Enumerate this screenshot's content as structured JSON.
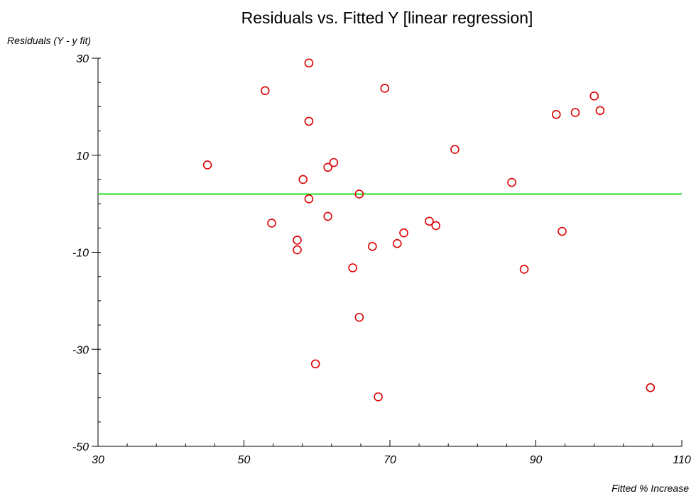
{
  "chart_data": {
    "type": "scatter",
    "title": "Residuals vs. Fitted Y [linear regression]",
    "xlabel": "Fitted % Increase",
    "ylabel": "Residuals (Y - y fit)",
    "xlim": [
      30,
      110
    ],
    "ylim": [
      -50,
      30
    ],
    "xticks": [
      30,
      50,
      70,
      90,
      110
    ],
    "yticks": [
      30,
      10,
      -10,
      -30,
      -50
    ],
    "xtick_labels": [
      "30",
      "50",
      "70",
      "90",
      "110"
    ],
    "ytick_labels": [
      "30",
      "10",
      "-10",
      "-30",
      "-50"
    ],
    "xminor_step": 4,
    "yminor_step": 5,
    "grid": false,
    "reference_line": {
      "y": 2,
      "color": "#22dd22"
    },
    "marker_color": "#dd0000",
    "points": [
      {
        "x": 45.0,
        "y": 8.0
      },
      {
        "x": 52.9,
        "y": 23.3
      },
      {
        "x": 53.8,
        "y": -4.0
      },
      {
        "x": 57.3,
        "y": -7.5
      },
      {
        "x": 57.3,
        "y": -9.5
      },
      {
        "x": 58.1,
        "y": 5.0
      },
      {
        "x": 58.9,
        "y": 29.0
      },
      {
        "x": 58.9,
        "y": 17.0
      },
      {
        "x": 58.9,
        "y": 1.0
      },
      {
        "x": 59.8,
        "y": -33.0
      },
      {
        "x": 61.5,
        "y": -2.6
      },
      {
        "x": 61.5,
        "y": 7.5
      },
      {
        "x": 62.3,
        "y": 8.5
      },
      {
        "x": 64.9,
        "y": -13.2
      },
      {
        "x": 65.8,
        "y": -23.4
      },
      {
        "x": 65.8,
        "y": 2.0
      },
      {
        "x": 67.6,
        "y": -8.8
      },
      {
        "x": 68.4,
        "y": -39.8
      },
      {
        "x": 69.3,
        "y": 23.8
      },
      {
        "x": 71.0,
        "y": -8.2
      },
      {
        "x": 71.9,
        "y": -6.0
      },
      {
        "x": 75.4,
        "y": -3.6
      },
      {
        "x": 76.3,
        "y": -4.5
      },
      {
        "x": 78.9,
        "y": 11.2
      },
      {
        "x": 86.7,
        "y": 4.4
      },
      {
        "x": 88.4,
        "y": -13.5
      },
      {
        "x": 92.8,
        "y": 18.4
      },
      {
        "x": 93.6,
        "y": -5.7
      },
      {
        "x": 95.4,
        "y": 18.8
      },
      {
        "x": 98.0,
        "y": 22.2
      },
      {
        "x": 98.8,
        "y": 19.2
      },
      {
        "x": 105.7,
        "y": -37.9
      }
    ]
  }
}
